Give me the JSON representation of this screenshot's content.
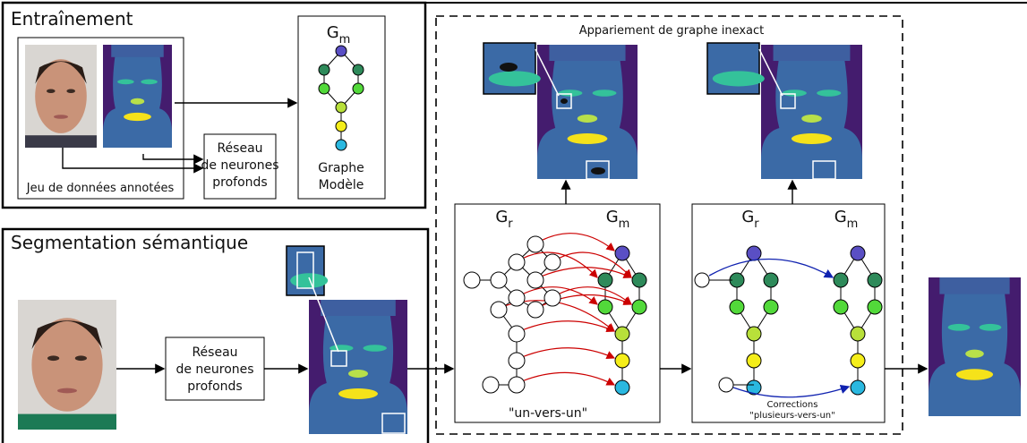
{
  "training": {
    "title": "Entraînement",
    "dataset_label": "Jeu de données annotées",
    "network": [
      "Réseau",
      "de neurones",
      "profonds"
    ],
    "model_graph": {
      "symbol": "G",
      "subscript": "m",
      "label": [
        "Graphe",
        "Modèle"
      ]
    }
  },
  "segmentation": {
    "title": "Segmentation sémantique",
    "network": [
      "Réseau",
      "de neurones",
      "profonds"
    ]
  },
  "matching": {
    "title": "Appariement de graphe inexact",
    "one_to_one": {
      "left_graph": {
        "symbol": "G",
        "subscript": "r"
      },
      "right_graph": {
        "symbol": "G",
        "subscript": "m"
      },
      "label": "\"un-vers-un\""
    },
    "many_to_one": {
      "left_graph": {
        "symbol": "G",
        "subscript": "r"
      },
      "right_graph": {
        "symbol": "G",
        "subscript": "m"
      },
      "label": [
        "Corrections",
        "\"plusieurs-vers-un\""
      ]
    }
  }
}
